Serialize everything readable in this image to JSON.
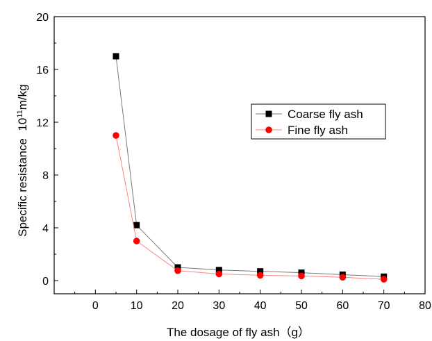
{
  "chart_data": {
    "type": "line",
    "title": "",
    "xlabel": "The dosage of fly ash（g）",
    "ylabel": "Specific resistance",
    "ylabel_unit_base": "10",
    "ylabel_unit_exp": "11",
    "ylabel_unit_rest": "m/kg",
    "xlim": [
      -10,
      80
    ],
    "ylim": [
      -1,
      20
    ],
    "xticks": [
      0,
      10,
      20,
      30,
      40,
      50,
      60,
      70,
      80
    ],
    "yticks": [
      0,
      4,
      8,
      12,
      16,
      20
    ],
    "grid": false,
    "legend_position": "upper-right",
    "series": [
      {
        "name": "Coarse fly ash",
        "marker": "square",
        "marker_color": "#000000",
        "line_color": "#777777",
        "x": [
          5,
          10,
          20,
          30,
          40,
          50,
          60,
          70
        ],
        "y": [
          17,
          4.2,
          1.0,
          0.8,
          0.7,
          0.6,
          0.45,
          0.3
        ]
      },
      {
        "name": "Fine fly ash",
        "marker": "circle",
        "marker_color": "#ff0000",
        "line_color": "#ff8080",
        "x": [
          5,
          10,
          20,
          30,
          40,
          50,
          60,
          70
        ],
        "y": [
          11,
          3.0,
          0.75,
          0.5,
          0.4,
          0.35,
          0.25,
          0.1
        ]
      }
    ]
  }
}
